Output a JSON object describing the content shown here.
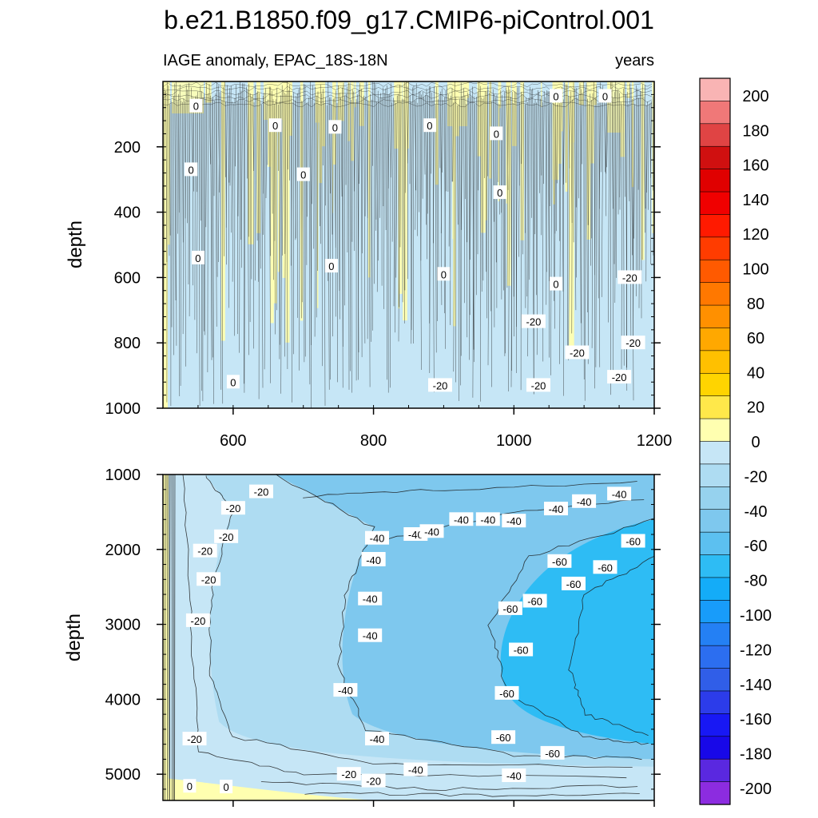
{
  "chart_data": [
    {
      "type": "heatmap",
      "title": "b.e21.B1850.f09_g17.CMIP6-piControl.001",
      "subtitle_left": "IAGE anomaly, EPAC_18S-18N",
      "subtitle_right": "years",
      "ylabel": "depth",
      "xlim": [
        500,
        1200
      ],
      "ylim": [
        1000,
        0
      ],
      "xticks": [
        600,
        800,
        1000,
        1200
      ],
      "yticks": [
        200,
        400,
        600,
        800,
        1000
      ],
      "contour_labels": [
        {
          "text": "0",
          "x": 547,
          "y": 75
        },
        {
          "text": "0",
          "x": 660,
          "y": 135
        },
        {
          "text": "0",
          "x": 745,
          "y": 140
        },
        {
          "text": "0",
          "x": 880,
          "y": 135
        },
        {
          "text": "0",
          "x": 975,
          "y": 160
        },
        {
          "text": "0",
          "x": 1060,
          "y": 45
        },
        {
          "text": "0",
          "x": 1130,
          "y": 45
        },
        {
          "text": "0",
          "x": 540,
          "y": 270
        },
        {
          "text": "0",
          "x": 700,
          "y": 285
        },
        {
          "text": "0",
          "x": 980,
          "y": 340
        },
        {
          "text": "0",
          "x": 550,
          "y": 540
        },
        {
          "text": "0",
          "x": 740,
          "y": 565
        },
        {
          "text": "0",
          "x": 900,
          "y": 590
        },
        {
          "text": "0",
          "x": 1060,
          "y": 620
        },
        {
          "text": "0",
          "x": 600,
          "y": 920
        },
        {
          "text": "-20",
          "x": 1165,
          "y": 600
        },
        {
          "text": "-20",
          "x": 1028,
          "y": 735
        },
        {
          "text": "-20",
          "x": 1090,
          "y": 830
        },
        {
          "text": "-20",
          "x": 1170,
          "y": 800
        },
        {
          "text": "-20",
          "x": 895,
          "y": 930
        },
        {
          "text": "-20",
          "x": 1035,
          "y": 930
        },
        {
          "text": "-20",
          "x": 1150,
          "y": 905
        }
      ]
    },
    {
      "type": "heatmap",
      "ylabel": "depth",
      "xlim": [
        500,
        1200
      ],
      "ylim": [
        5350,
        1000
      ],
      "yticks": [
        1000,
        2000,
        3000,
        4000,
        5000
      ],
      "contour_labels": [
        {
          "text": "-20",
          "x": 600,
          "y": 1450
        },
        {
          "text": "-20",
          "x": 640,
          "y": 1230
        },
        {
          "text": "-20",
          "x": 590,
          "y": 1830
        },
        {
          "text": "-20",
          "x": 560,
          "y": 2020
        },
        {
          "text": "-20",
          "x": 565,
          "y": 2400
        },
        {
          "text": "-20",
          "x": 550,
          "y": 2950
        },
        {
          "text": "-20",
          "x": 545,
          "y": 4530
        },
        {
          "text": "-20",
          "x": 765,
          "y": 5000
        },
        {
          "text": "-20",
          "x": 800,
          "y": 5090
        },
        {
          "text": "0",
          "x": 538,
          "y": 5160
        },
        {
          "text": "0",
          "x": 590,
          "y": 5170
        },
        {
          "text": "-40",
          "x": 860,
          "y": 1800
        },
        {
          "text": "-40",
          "x": 805,
          "y": 1850
        },
        {
          "text": "-40",
          "x": 883,
          "y": 1760
        },
        {
          "text": "-40",
          "x": 925,
          "y": 1600
        },
        {
          "text": "-40",
          "x": 963,
          "y": 1600
        },
        {
          "text": "-40",
          "x": 1000,
          "y": 1620
        },
        {
          "text": "-40",
          "x": 1060,
          "y": 1460
        },
        {
          "text": "-40",
          "x": 1100,
          "y": 1360
        },
        {
          "text": "-40",
          "x": 1150,
          "y": 1260
        },
        {
          "text": "-40",
          "x": 800,
          "y": 2130
        },
        {
          "text": "-40",
          "x": 800,
          "y": 2140
        },
        {
          "text": "-40",
          "x": 795,
          "y": 2660
        },
        {
          "text": "-40",
          "x": 795,
          "y": 3150
        },
        {
          "text": "-40",
          "x": 760,
          "y": 3880
        },
        {
          "text": "-40",
          "x": 805,
          "y": 4530
        },
        {
          "text": "-40",
          "x": 860,
          "y": 4940
        },
        {
          "text": "-40",
          "x": 1000,
          "y": 5020
        },
        {
          "text": "-60",
          "x": 1170,
          "y": 1890
        },
        {
          "text": "-60",
          "x": 1065,
          "y": 2160
        },
        {
          "text": "-60",
          "x": 1130,
          "y": 2240
        },
        {
          "text": "-60",
          "x": 1085,
          "y": 2460
        },
        {
          "text": "-60",
          "x": 1030,
          "y": 2690
        },
        {
          "text": "-60",
          "x": 995,
          "y": 2790
        },
        {
          "text": "-60",
          "x": 1010,
          "y": 3340
        },
        {
          "text": "-60",
          "x": 990,
          "y": 3920
        },
        {
          "text": "-60",
          "x": 985,
          "y": 4510
        },
        {
          "text": "-60",
          "x": 1055,
          "y": 4720
        }
      ]
    }
  ],
  "colorbar": {
    "labels": [
      "200",
      "180",
      "160",
      "140",
      "120",
      "100",
      "80",
      "60",
      "40",
      "20",
      "0",
      "-20",
      "-40",
      "-60",
      "-80",
      "-100",
      "-120",
      "-140",
      "-160",
      "-180",
      "-200"
    ],
    "colors_top_to_bottom": [
      "#f9b4b4",
      "#f07878",
      "#e04444",
      "#d01010",
      "#e00000",
      "#f00000",
      "#ff1a00",
      "#ff3c00",
      "#ff5a00",
      "#ff7800",
      "#ff9000",
      "#ffa800",
      "#ffc000",
      "#ffd400",
      "#ffe84a",
      "#ffffb0",
      "#c6e6f6",
      "#aedcf2",
      "#96d2ee",
      "#7ec8ee",
      "#5cc0f0",
      "#2ebcf4",
      "#14acf8",
      "#189cfa",
      "#2480f4",
      "#2c6ef0",
      "#305ee8",
      "#2c3cea",
      "#1818f4",
      "#1808e8",
      "#5a28e0",
      "#8c2ce0"
    ]
  },
  "colors": {
    "upper_base": "#c6e6f6",
    "yellow_band": "#ffffb0",
    "blue_20_40": "#aedcf2",
    "blue_40_60": "#7ec8ee",
    "blue_60_80": "#2ebcf4",
    "contour_line": "#1a1a1a"
  }
}
